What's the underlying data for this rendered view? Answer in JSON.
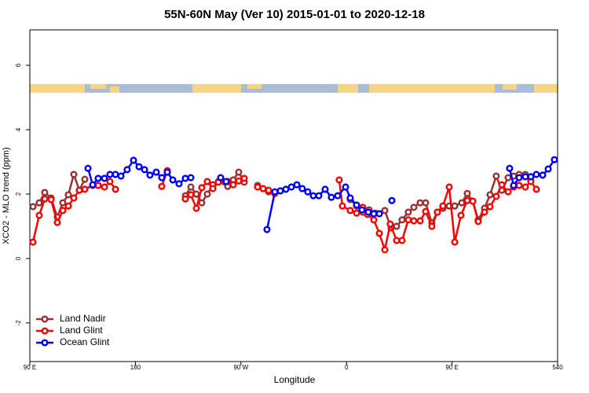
{
  "chart_data": {
    "type": "line",
    "title": "55N-60N May (Ver 10)   2015-01-01 to 2020-12-18",
    "x_label": "Longitude",
    "y_label": "XCO2 - MLO trend (ppm)",
    "xlim": [
      90,
      540
    ],
    "xticks": [
      {
        "value": 90,
        "label": "90 E"
      },
      180,
      {
        "value": 270,
        "label": "90 W"
      },
      {
        "value": 360,
        "label": "0"
      },
      {
        "value": 450,
        "label": "90 E"
      },
      540
    ],
    "ylim": [
      -3.2,
      7.1
    ],
    "yticks": [
      -2,
      0,
      2,
      4,
      6
    ],
    "grid": false,
    "legend_position": "bottom-left",
    "series": [
      {
        "name": "Land Nadir",
        "color": "#993333",
        "x": [
          92.7,
          98.0,
          102.7,
          108.1,
          113.4,
          118.1,
          122.8,
          127.5,
          132.2,
          136.9,
          null,
          222.6,
          227.3,
          232.0,
          236.6,
          241.3,
          246.0,
          250.7,
          258.7,
          263.4,
          268.1,
          272.8,
          null,
          284.2,
          288.9,
          293.6,
          null,
          363.2,
          368.6,
          373.9,
          379.3,
          384.6,
          392.7,
          398.0,
          402.7,
          407.4,
          412.7,
          417.4,
          422.8,
          427.5,
          432.8,
          437.5,
          442.2,
          447.6,
          452.3,
          458.3,
          463.0,
          467.7,
          472.3,
          477.7,
          482.4,
          487.7,
          492.4,
          497.8,
          502.5,
          507.2,
          512.5,
          517.2
        ],
        "values": [
          1.61,
          1.73,
          2.05,
          1.88,
          1.29,
          1.73,
          1.98,
          2.61,
          2.12,
          2.46,
          null,
          1.95,
          2.22,
          2.0,
          1.73,
          2.0,
          2.29,
          2.39,
          2.24,
          2.44,
          2.68,
          2.37,
          null,
          2.27,
          2.17,
          2.07,
          null,
          1.83,
          1.63,
          1.44,
          1.51,
          1.41,
          1.49,
          0.95,
          1.0,
          1.2,
          1.44,
          1.59,
          1.73,
          1.73,
          1.1,
          1.44,
          1.56,
          1.63,
          1.63,
          1.73,
          2.02,
          1.78,
          1.2,
          1.56,
          1.98,
          2.56,
          2.12,
          2.51,
          2.56,
          2.61,
          2.61,
          2.41
        ]
      },
      {
        "name": "Land Glint",
        "color": "#ff0000",
        "x": [
          92.7,
          98.0,
          102.7,
          108.1,
          113.4,
          118.1,
          122.8,
          127.5,
          132.2,
          136.9,
          143.6,
          148.3,
          153.6,
          158.3,
          163.0,
          null,
          202.5,
          207.2,
          null,
          222.6,
          227.3,
          232.0,
          236.6,
          241.3,
          246.0,
          250.7,
          258.7,
          263.4,
          268.1,
          272.8,
          null,
          284.2,
          288.9,
          293.6,
          298.9,
          null,
          353.8,
          356.5,
          363.2,
          368.6,
          373.9,
          377.9,
          383.3,
          388.0,
          392.7,
          397.3,
          402.7,
          407.4,
          412.7,
          417.4,
          422.8,
          427.5,
          432.8,
          437.5,
          442.2,
          447.6,
          452.3,
          457.6,
          463.0,
          467.7,
          472.3,
          477.7,
          482.4,
          487.7,
          492.4,
          497.8,
          502.5,
          507.2,
          512.5,
          517.2,
          521.9
        ],
        "values": [
          0.51,
          1.34,
          1.85,
          1.83,
          1.12,
          1.49,
          1.63,
          1.88,
          2.12,
          2.15,
          2.27,
          2.27,
          2.22,
          2.39,
          2.15,
          null,
          2.24,
          2.73,
          null,
          1.85,
          1.98,
          1.56,
          2.2,
          2.39,
          2.17,
          2.37,
          2.39,
          2.29,
          2.41,
          2.49,
          null,
          2.22,
          2.17,
          2.12,
          2.02,
          null,
          2.44,
          1.63,
          1.49,
          1.41,
          1.59,
          1.37,
          1.2,
          0.78,
          0.27,
          1.07,
          0.56,
          0.56,
          1.2,
          1.17,
          1.17,
          1.46,
          1.0,
          1.44,
          1.63,
          2.22,
          0.51,
          1.34,
          1.8,
          1.78,
          1.15,
          1.44,
          1.61,
          1.93,
          2.29,
          2.07,
          2.22,
          2.27,
          2.22,
          2.39,
          2.15
        ]
      },
      {
        "name": "Ocean Glint",
        "color": "#0000ff",
        "x": [
          139.6,
          143.6,
          148.3,
          153.6,
          158.3,
          163.0,
          167.7,
          173.0,
          178.4,
          183.1,
          187.8,
          192.4,
          197.8,
          202.5,
          207.2,
          211.9,
          217.2,
          222.6,
          227.3,
          null,
          252.7,
          257.4,
          null,
          292.2,
          298.9,
          303.6,
          308.3,
          313.0,
          317.7,
          322.3,
          327.0,
          331.7,
          336.4,
          341.8,
          347.1,
          352.5,
          359.2,
          363.2,
          368.6,
          373.2,
          378.6,
          383.3,
          388.0,
          null,
          398.7,
          null,
          499.1,
          502.5,
          507.2,
          512.5,
          517.2,
          521.9,
          527.3,
          532.0,
          537.3
        ],
        "values": [
          2.8,
          2.29,
          2.49,
          2.49,
          2.61,
          2.61,
          2.56,
          2.76,
          3.05,
          2.85,
          2.76,
          2.59,
          2.68,
          2.51,
          2.68,
          2.44,
          2.32,
          2.49,
          2.51,
          null,
          2.51,
          2.39,
          null,
          0.9,
          2.07,
          2.1,
          2.15,
          2.22,
          2.29,
          2.17,
          2.07,
          1.95,
          1.95,
          2.15,
          1.9,
          1.95,
          2.22,
          1.88,
          1.66,
          1.51,
          1.44,
          1.39,
          1.39,
          null,
          1.8,
          null,
          2.8,
          2.27,
          2.51,
          2.54,
          2.54,
          2.61,
          2.59,
          2.78,
          3.07
        ]
      }
    ]
  }
}
